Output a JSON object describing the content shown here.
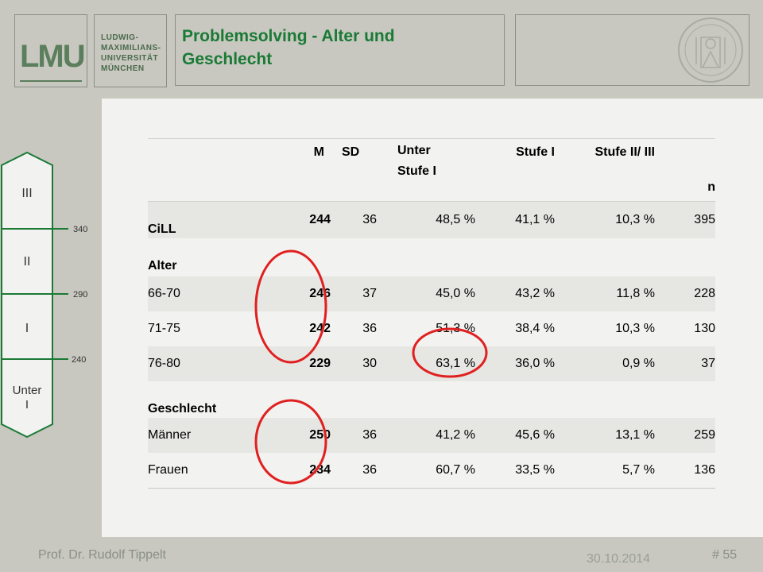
{
  "header": {
    "logo_text": "LMU",
    "university_lines": [
      "LUDWIG-",
      "MAXIMILIANS-",
      "UNIVERSITÄT",
      "MÜNCHEN"
    ],
    "title_line1": "Problemsolving - Alter und",
    "title_line2": "Geschlecht"
  },
  "scale": {
    "levels": [
      "III",
      "II",
      "I",
      "Unter I"
    ],
    "ticks": [
      "340",
      "290",
      "240"
    ]
  },
  "table": {
    "columns": [
      "",
      "M",
      "SD",
      "Unter Stufe I",
      "Stufe I",
      "Stufe II/ III",
      "n"
    ],
    "cill": {
      "label": "CiLL",
      "M": "244",
      "SD": "36",
      "u": "48,5 %",
      "s1": "41,1 %",
      "s2": "10,3 %",
      "n": "395"
    },
    "alter_label": "Alter",
    "alter_rows": [
      {
        "label": "66-70",
        "M": "246",
        "SD": "37",
        "u": "45,0 %",
        "s1": "43,2 %",
        "s2": "11,8 %",
        "n": "228"
      },
      {
        "label": "71-75",
        "M": "242",
        "SD": "36",
        "u": "51,3 %",
        "s1": "38,4 %",
        "s2": "10,3 %",
        "n": "130"
      },
      {
        "label": "76-80",
        "M": "229",
        "SD": "30",
        "u": "63,1 %",
        "s1": "36,0 %",
        "s2": "0,9 %",
        "n": "37"
      }
    ],
    "geschlecht_label": "Geschlecht",
    "geschlecht_rows": [
      {
        "label": "Männer",
        "M": "250",
        "SD": "36",
        "u": "41,2 %",
        "s1": "45,6 %",
        "s2": "13,1 %",
        "n": "259"
      },
      {
        "label": "Frauen",
        "M": "234",
        "SD": "36",
        "u": "60,7 %",
        "s1": "33,5 %",
        "s2": "5,7 %",
        "n": "136"
      }
    ]
  },
  "footer": {
    "name": "Prof. Dr. Rudolf Tippelt",
    "date": "30.10.2014",
    "page": "# 55"
  },
  "colors": {
    "title_green": "#1a7a35",
    "logo_green": "#5b7e5c",
    "highlight_red": "#e02020"
  }
}
